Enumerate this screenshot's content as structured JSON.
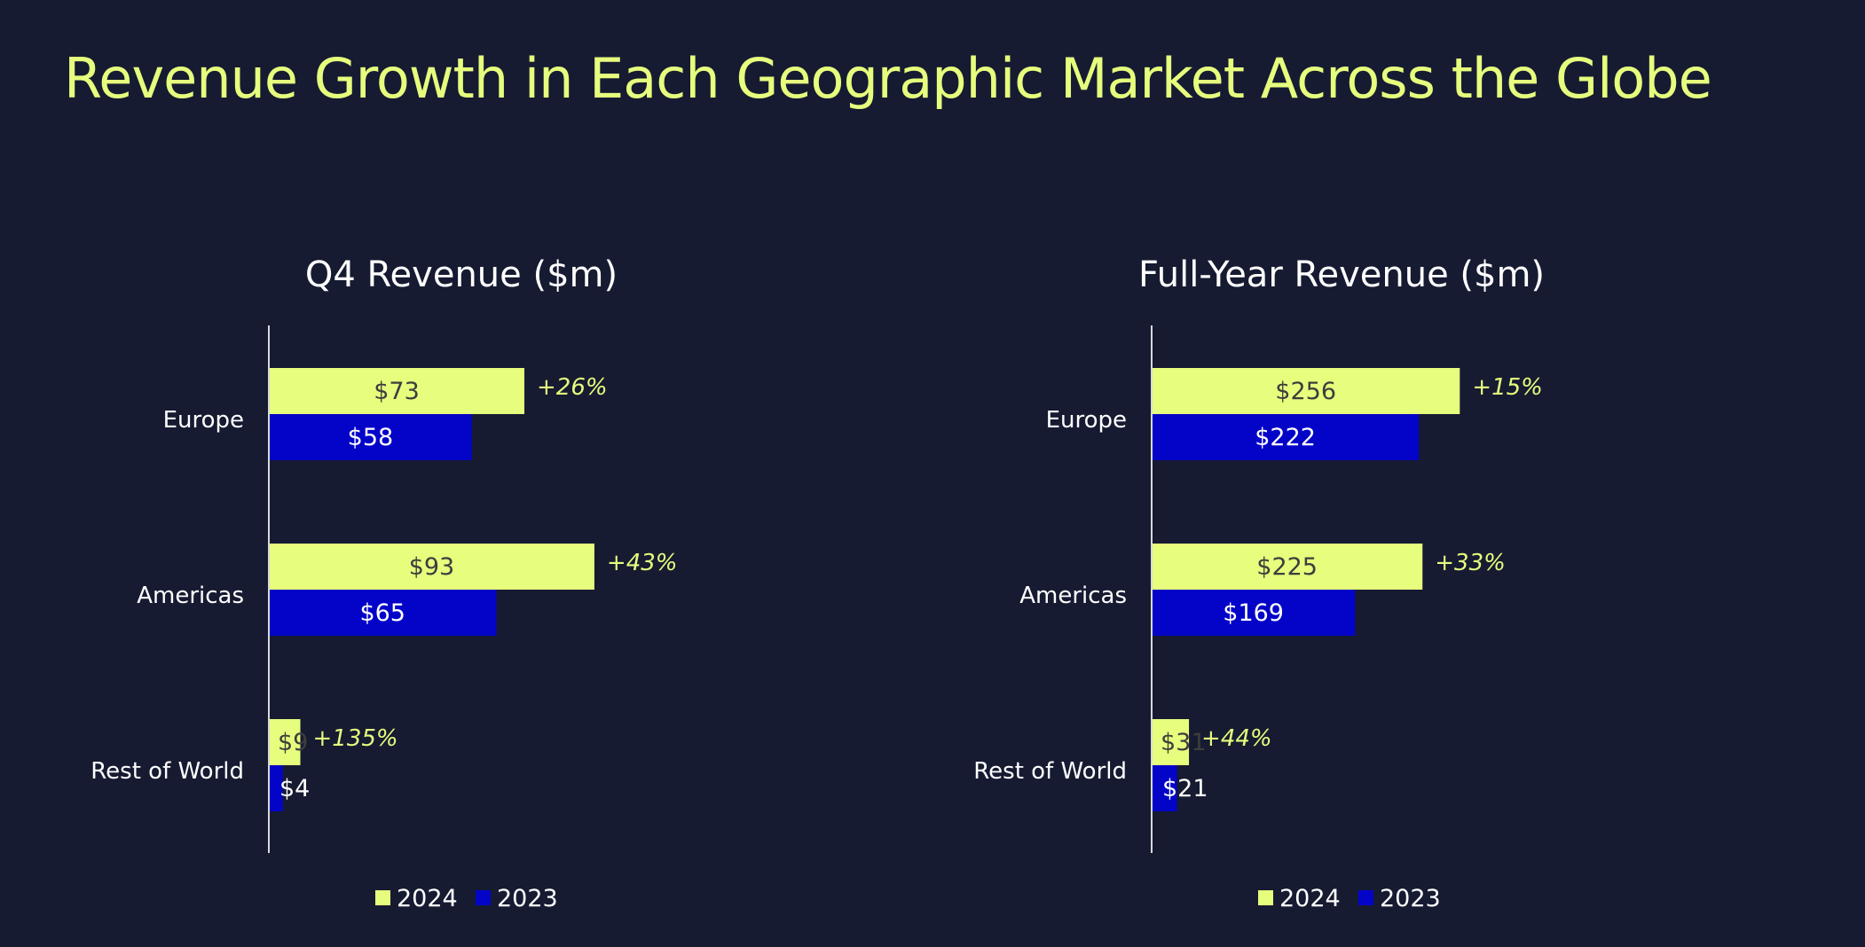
{
  "page": {
    "title": "Revenue Growth in Each Geographic Market Across the Globe"
  },
  "colors": {
    "background": "#161b32",
    "accent": "#e6fd7d",
    "series_2024": "#e6fd7d",
    "series_2023": "#0404c8",
    "axis": "#d8d8d8",
    "text": "#ffffff",
    "label_dark": "#3d3d3d"
  },
  "chart_data": [
    {
      "type": "bar",
      "orientation": "horizontal",
      "title": "Q4 Revenue ($m)",
      "categories": [
        "Europe",
        "Americas",
        "Rest of World"
      ],
      "series": [
        {
          "name": "2024",
          "values": [
            73,
            93,
            9
          ],
          "labels": [
            "$73",
            "$93",
            "$9"
          ]
        },
        {
          "name": "2023",
          "values": [
            58,
            65,
            4
          ],
          "labels": [
            "$58",
            "$65",
            "$4"
          ]
        }
      ],
      "growth_labels": [
        "+26%",
        "+43%",
        "+135%"
      ],
      "xlim": [
        0,
        110
      ],
      "grid": false,
      "legend": "bottom-center"
    },
    {
      "type": "bar",
      "orientation": "horizontal",
      "title": "Full-Year Revenue ($m)",
      "categories": [
        "Europe",
        "Americas",
        "Rest of World"
      ],
      "series": [
        {
          "name": "2024",
          "values": [
            256,
            225,
            31
          ],
          "labels": [
            "$256",
            "$225",
            "$31"
          ]
        },
        {
          "name": "2023",
          "values": [
            222,
            169,
            21
          ],
          "labels": [
            "$222",
            "$169",
            "$21"
          ]
        }
      ],
      "growth_labels": [
        "+15%",
        "+33%",
        "+44%"
      ],
      "xlim": [
        0,
        300
      ],
      "grid": false,
      "legend": "bottom-center"
    }
  ]
}
